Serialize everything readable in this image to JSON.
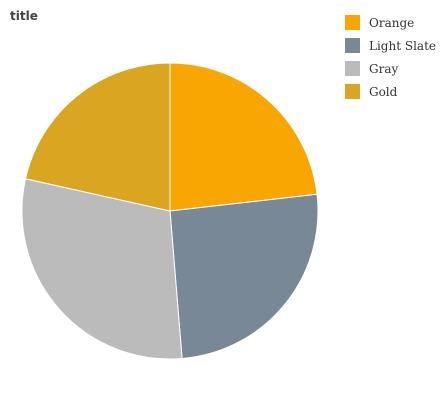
{
  "chart_data": {
    "type": "pie",
    "title": "title",
    "categories": [
      "Orange",
      "Light Slate",
      "Gray",
      "Gold"
    ],
    "values": [
      23.2,
      25.5,
      29.8,
      21.5
    ],
    "colors": [
      "#f9a602",
      "#788897",
      "#bbbbbb",
      "#daa520"
    ],
    "start_angle_deg": 0,
    "direction": "clockwise",
    "legend_position": "right"
  }
}
